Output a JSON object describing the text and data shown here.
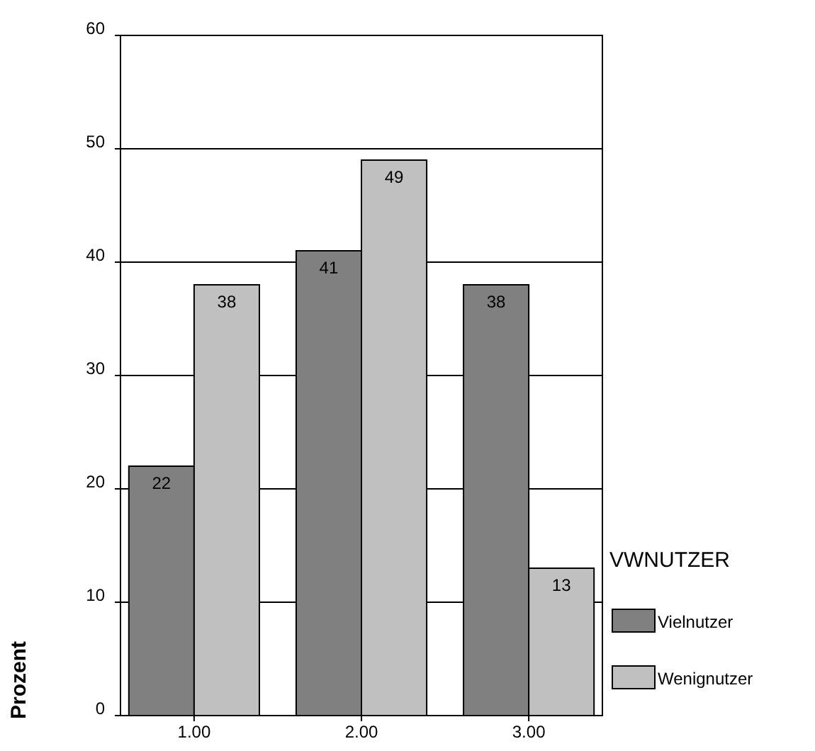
{
  "chart_data": {
    "type": "bar",
    "ylabel": "Prozent",
    "legend_title": "VWNUTZER",
    "categories": [
      "1.00",
      "2.00",
      "3.00"
    ],
    "series": [
      {
        "name": "Vielnutzer",
        "color": "#808080",
        "values": [
          22,
          41,
          38
        ]
      },
      {
        "name": "Wenignutzer",
        "color": "#c0c0c0",
        "values": [
          38,
          49,
          13
        ]
      }
    ],
    "ylim": [
      0,
      60
    ],
    "yticks": [
      0,
      10,
      20,
      30,
      40,
      50,
      60
    ],
    "grid": "y",
    "legend": "right",
    "data_labels": true
  }
}
